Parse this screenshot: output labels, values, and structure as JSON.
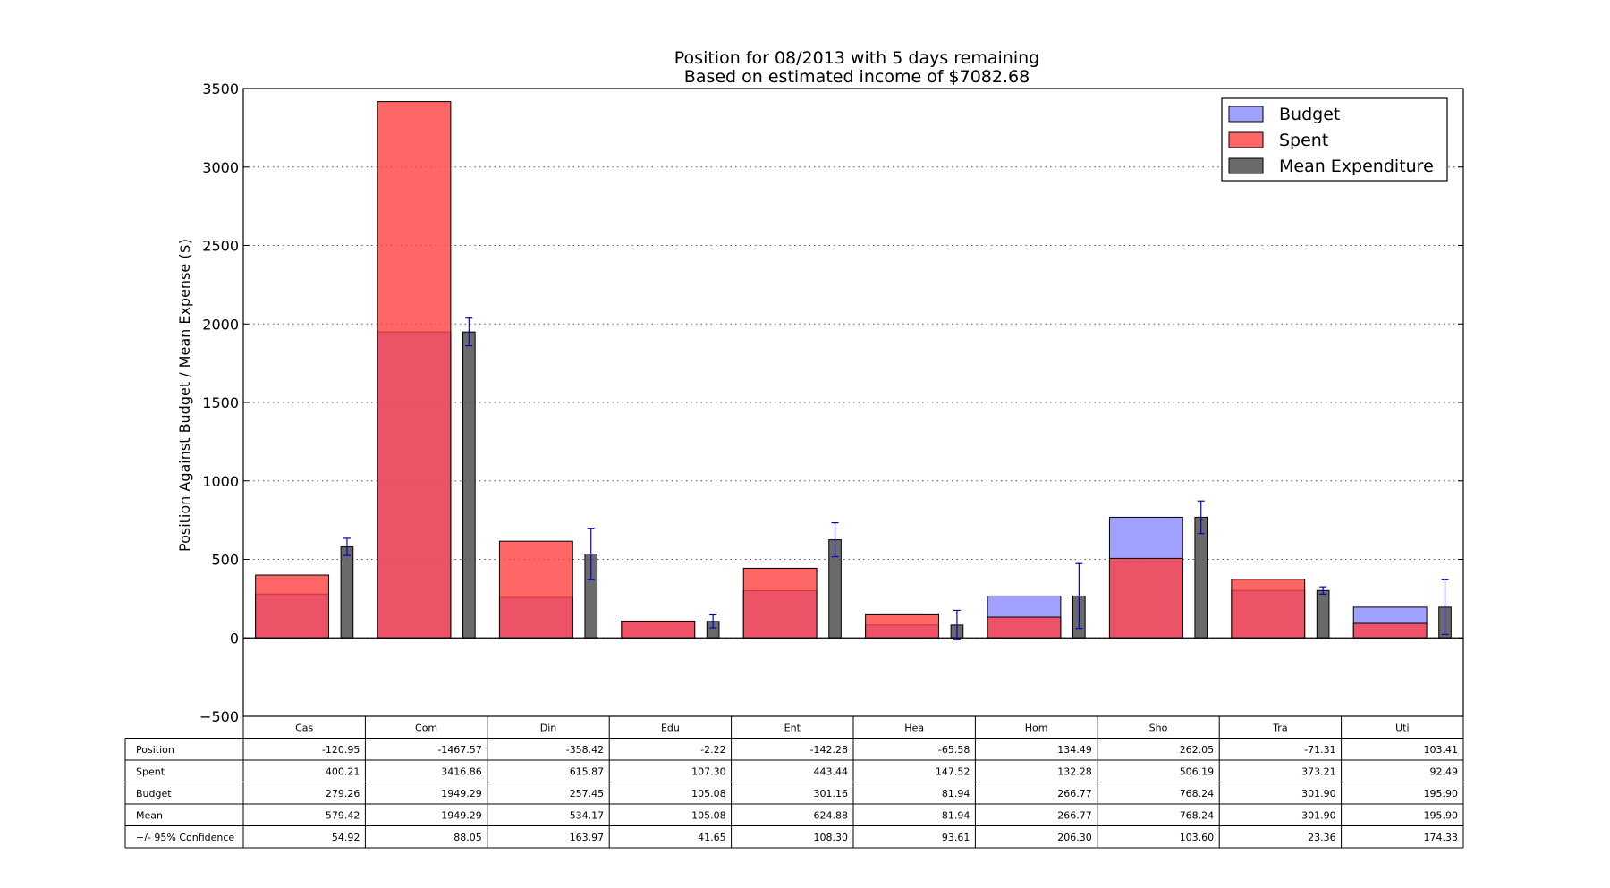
{
  "chart_data": {
    "type": "bar",
    "title": "Position for 08/2013 with 5 days remaining",
    "subtitle": "Based on estimated income of $7082.68",
    "xlabel": "",
    "ylabel": "Position Against Budget / Mean Expense ($)",
    "ylim": [
      -500,
      3500
    ],
    "yticks": [
      -500,
      0,
      500,
      1000,
      1500,
      2000,
      2500,
      3000,
      3500
    ],
    "ytick_labels": [
      "−500",
      "0",
      "500",
      "1000",
      "1500",
      "2000",
      "2500",
      "3000",
      "3500"
    ],
    "grid": true,
    "legend_position": "top-right",
    "categories": [
      "Cas",
      "Com",
      "Din",
      "Edu",
      "Ent",
      "Hea",
      "Hom",
      "Sho",
      "Tra",
      "Uti"
    ],
    "series": [
      {
        "name": "Budget",
        "color": "#8080ff",
        "values": [
          279.26,
          1949.29,
          257.45,
          105.08,
          301.16,
          81.94,
          266.77,
          768.24,
          301.9,
          195.9
        ]
      },
      {
        "name": "Spent",
        "color": "#ff4040",
        "values": [
          400.21,
          3416.86,
          615.87,
          107.3,
          443.44,
          147.52,
          132.28,
          506.19,
          373.21,
          92.49
        ]
      },
      {
        "name": "Mean Expenditure",
        "color": "#505050",
        "values": [
          579.42,
          1949.29,
          534.17,
          105.08,
          624.88,
          81.94,
          266.77,
          768.24,
          301.9,
          195.9
        ],
        "error": [
          54.92,
          88.05,
          163.97,
          41.65,
          108.3,
          93.61,
          206.3,
          103.6,
          23.36,
          174.33
        ],
        "error_color": "#0000cc"
      }
    ],
    "table": {
      "row_labels": [
        "Position",
        "Spent",
        "Budget",
        "Mean",
        "+/- 95% Confidence"
      ],
      "rows": [
        [
          "-120.95",
          "-1467.57",
          "-358.42",
          "-2.22",
          "-142.28",
          "-65.58",
          "134.49",
          "262.05",
          "-71.31",
          "103.41"
        ],
        [
          "400.21",
          "3416.86",
          "615.87",
          "107.30",
          "443.44",
          "147.52",
          "132.28",
          "506.19",
          "373.21",
          "92.49"
        ],
        [
          "279.26",
          "1949.29",
          "257.45",
          "105.08",
          "301.16",
          "81.94",
          "266.77",
          "768.24",
          "301.90",
          "195.90"
        ],
        [
          "579.42",
          "1949.29",
          "534.17",
          "105.08",
          "624.88",
          "81.94",
          "266.77",
          "768.24",
          "301.90",
          "195.90"
        ],
        [
          "54.92",
          "88.05",
          "163.97",
          "41.65",
          "108.30",
          "93.61",
          "206.30",
          "103.60",
          "23.36",
          "174.33"
        ]
      ]
    }
  }
}
